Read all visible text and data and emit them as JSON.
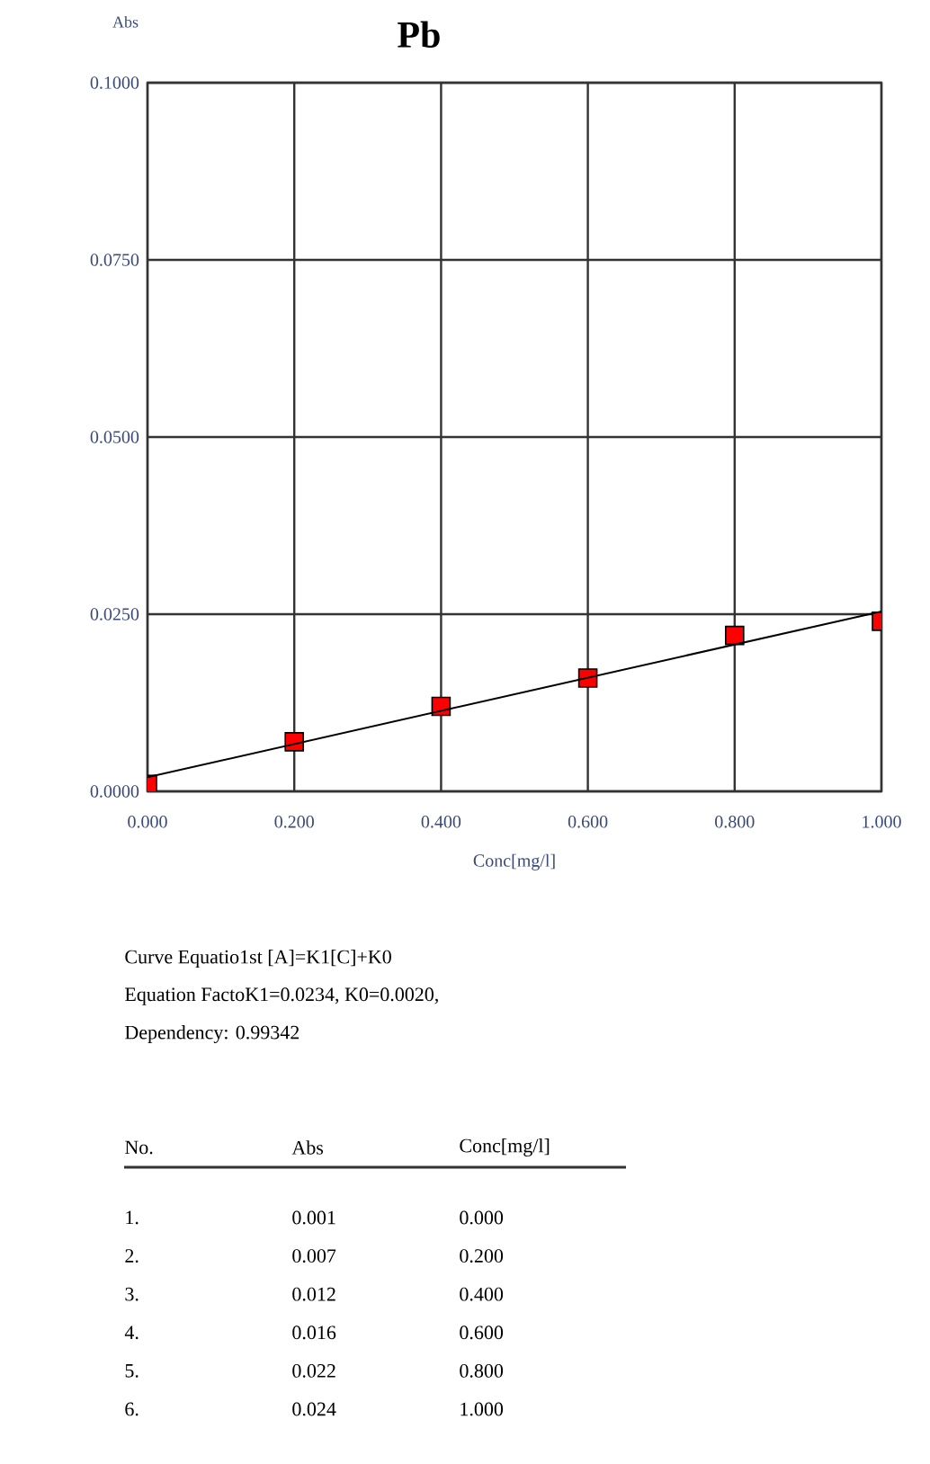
{
  "chart_data": {
    "type": "scatter",
    "title": "Pb",
    "xlabel": "Conc[mg/l]",
    "ylabel": "Abs",
    "xlim": [
      0,
      1
    ],
    "ylim": [
      0,
      0.1
    ],
    "xticks": [
      {
        "value": 0,
        "label": "0.000"
      },
      {
        "value": 0.2,
        "label": "0.200"
      },
      {
        "value": 0.4,
        "label": "0.400"
      },
      {
        "value": 0.6,
        "label": "0.600"
      },
      {
        "value": 0.8,
        "label": "0.800"
      },
      {
        "value": 1,
        "label": "1.000"
      }
    ],
    "yticks": [
      {
        "value": 0,
        "label": "0.0000"
      },
      {
        "value": 0.025,
        "label": "0.0250"
      },
      {
        "value": 0.05,
        "label": "0.0500"
      },
      {
        "value": 0.075,
        "label": "0.0750"
      },
      {
        "value": 0.1,
        "label": "0.1000"
      }
    ],
    "grid": true,
    "marker": "square",
    "series": [
      {
        "color": "#ff0000",
        "x": [
          0,
          0.2,
          0.4,
          0.6,
          0.8,
          1
        ],
        "values": [
          0.001,
          0.007,
          0.012,
          0.016,
          0.022,
          0.024
        ]
      },
      {
        "type": "line",
        "color": "#000000",
        "marker": "none",
        "line_style": "solid",
        "x": [
          0,
          1
        ],
        "values": [
          0.002,
          0.0254
        ]
      }
    ],
    "annotations": [
      "Curve Equatio1st [A]=K1[C]+K0",
      "Equation FactoK1=0.0234, K0=0.0020,",
      "Dependency:  0.99342",
      "No.",
      "Abs",
      "Conc[mg/l]",
      "1.",
      "0.001",
      "0.000",
      "2.",
      "0.007",
      "0.200",
      "3.",
      "0.012",
      "0.400",
      "4.",
      "0.016",
      "0.600",
      "5.",
      "0.022",
      "0.800",
      "6.",
      "0.024",
      "1.000"
    ]
  }
}
